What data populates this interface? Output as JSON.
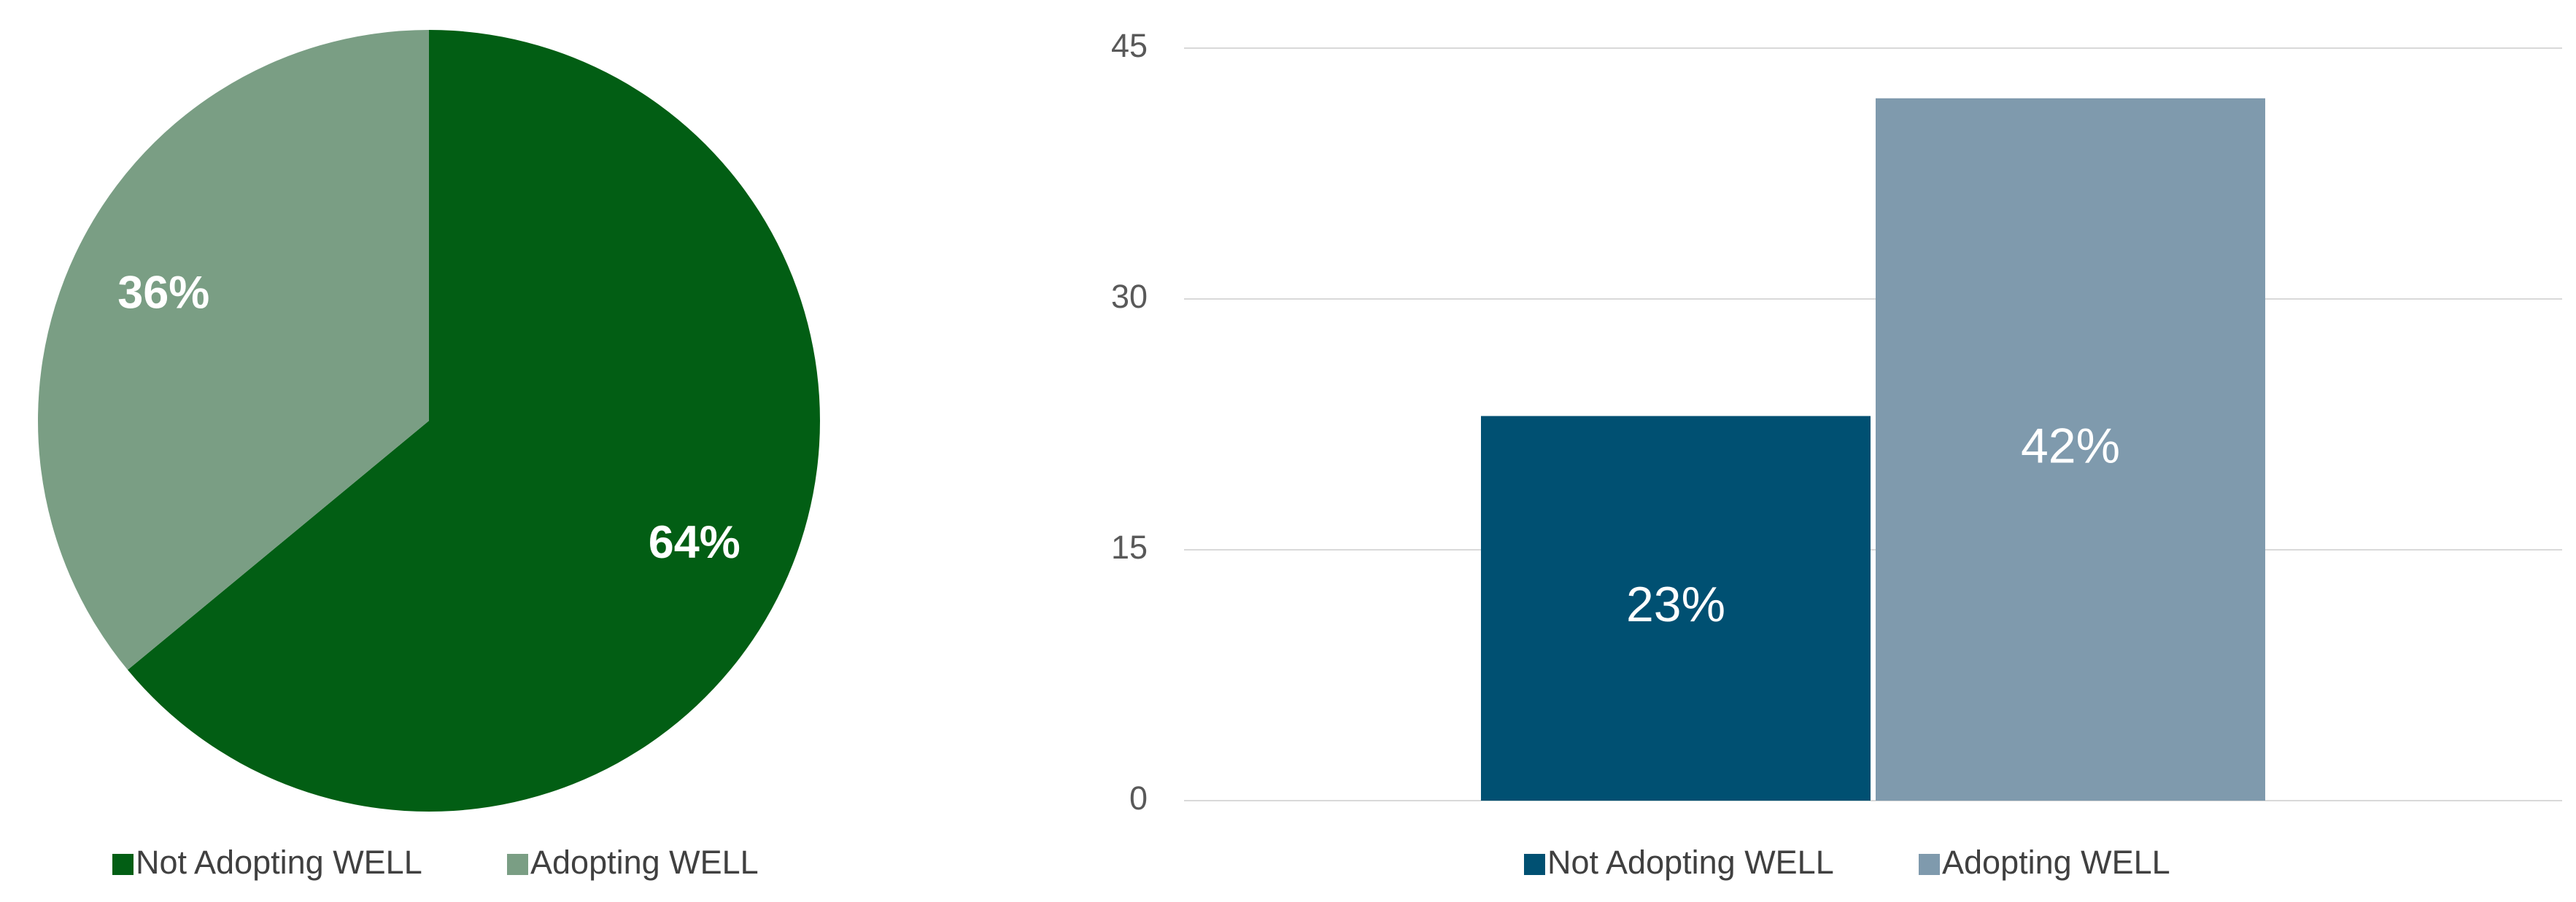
{
  "chart_data": [
    {
      "type": "pie",
      "categories": [
        "Not Adopting WELL",
        "Adopting WELL"
      ],
      "values": [
        64,
        36
      ],
      "value_labels": [
        "64%",
        "36%"
      ],
      "colors": [
        "#025e14",
        "#7a9e84"
      ],
      "legend": "bottom"
    },
    {
      "type": "bar",
      "categories": [
        null
      ],
      "series": [
        {
          "name": "Not Adopting WELL",
          "color": "#005072",
          "values": [
            23
          ],
          "value_labels": [
            "23%"
          ]
        },
        {
          "name": "Adopting WELL",
          "color": "#7f9aad",
          "values": [
            42
          ],
          "value_labels": [
            "42%"
          ]
        }
      ],
      "ylim": [
        0,
        45
      ],
      "yticks": [
        0,
        15,
        30,
        45
      ],
      "grid": true,
      "legend": "bottom"
    }
  ]
}
